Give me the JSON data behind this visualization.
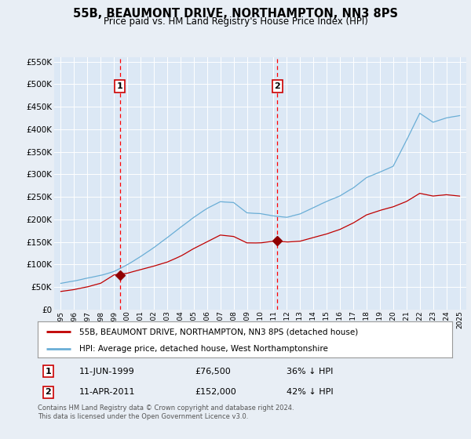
{
  "title": "55B, BEAUMONT DRIVE, NORTHAMPTON, NN3 8PS",
  "subtitle": "Price paid vs. HM Land Registry's House Price Index (HPI)",
  "background_color": "#e8eef5",
  "plot_bg_color": "#dce8f5",
  "legend_label_red": "55B, BEAUMONT DRIVE, NORTHAMPTON, NN3 8PS (detached house)",
  "legend_label_blue": "HPI: Average price, detached house, West Northamptonshire",
  "footnote": "Contains HM Land Registry data © Crown copyright and database right 2024.\nThis data is licensed under the Open Government Licence v3.0.",
  "marker1_date": "11-JUN-1999",
  "marker1_price": "£76,500",
  "marker1_hpi": "36% ↓ HPI",
  "marker2_date": "11-APR-2011",
  "marker2_price": "£152,000",
  "marker2_hpi": "42% ↓ HPI",
  "ylim": [
    0,
    560000
  ],
  "yticks": [
    0,
    50000,
    100000,
    150000,
    200000,
    250000,
    300000,
    350000,
    400000,
    450000,
    500000,
    550000
  ],
  "marker1_x": 1999.45,
  "marker1_y": 76500,
  "marker2_x": 2011.28,
  "marker2_y": 152000,
  "vline1_x": 1999.45,
  "vline2_x": 2011.28,
  "xmin": 1995.0,
  "xmax": 2025.5
}
